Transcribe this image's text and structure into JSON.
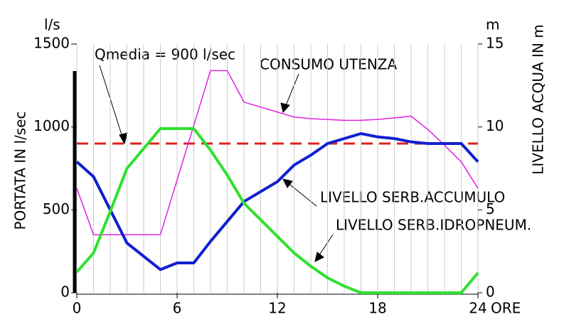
{
  "chart_data": {
    "type": "line",
    "y_unit": "l/s",
    "y2_unit": "m",
    "ylabel": "PORTATA IN l/sec",
    "y2label": "LIVELLO ACQUA IN m",
    "xlabel": "ORE",
    "x": [
      0,
      1,
      2,
      3,
      4,
      5,
      6,
      7,
      8,
      9,
      10,
      11,
      12,
      13,
      14,
      15,
      16,
      17,
      18,
      19,
      20,
      21,
      22,
      23,
      24
    ],
    "xlim": [
      0,
      24
    ],
    "xticks": [
      0,
      6,
      12,
      18,
      24
    ],
    "ylim": [
      0,
      1500
    ],
    "yticks": [
      0,
      500,
      1000,
      1500
    ],
    "y2lim": [
      0,
      15
    ],
    "y2ticks": [
      0,
      5,
      10,
      15
    ],
    "grid": true,
    "reference": {
      "label": "Qmedia = 900 l/sec",
      "value": 900,
      "color": "#e02020"
    },
    "series": [
      {
        "name": "CONSUMO UTENZA",
        "color": "#e020e0",
        "values": [
          630,
          350,
          350,
          350,
          350,
          350,
          680,
          1010,
          1340,
          1340,
          1150,
          1120,
          1090,
          1060,
          1050,
          1045,
          1040,
          1040,
          1045,
          1055,
          1065,
          985,
          890,
          790,
          630
        ]
      },
      {
        "name": "LIVELLO SERB.ACCUMULO",
        "color": "#1020d0",
        "axis": "y2",
        "values": [
          7.9,
          7.0,
          5.0,
          3.0,
          2.2,
          1.4,
          1.8,
          1.8,
          3.1,
          4.3,
          5.5,
          6.1,
          6.7,
          7.7,
          8.3,
          9.0,
          9.3,
          9.6,
          9.4,
          9.3,
          9.1,
          9.0,
          9.0,
          9.0,
          7.9
        ]
      },
      {
        "name": "LIVELLO SERB.IDROPNEUM.",
        "color": "#30e030",
        "axis": "y2",
        "values": [
          1.25,
          2.4,
          4.9,
          7.5,
          8.7,
          9.9,
          9.9,
          9.9,
          8.6,
          7.1,
          5.4,
          4.4,
          3.4,
          2.4,
          1.6,
          0.9,
          0.4,
          0,
          0,
          0,
          0,
          0,
          0,
          0,
          1.2
        ]
      }
    ]
  }
}
